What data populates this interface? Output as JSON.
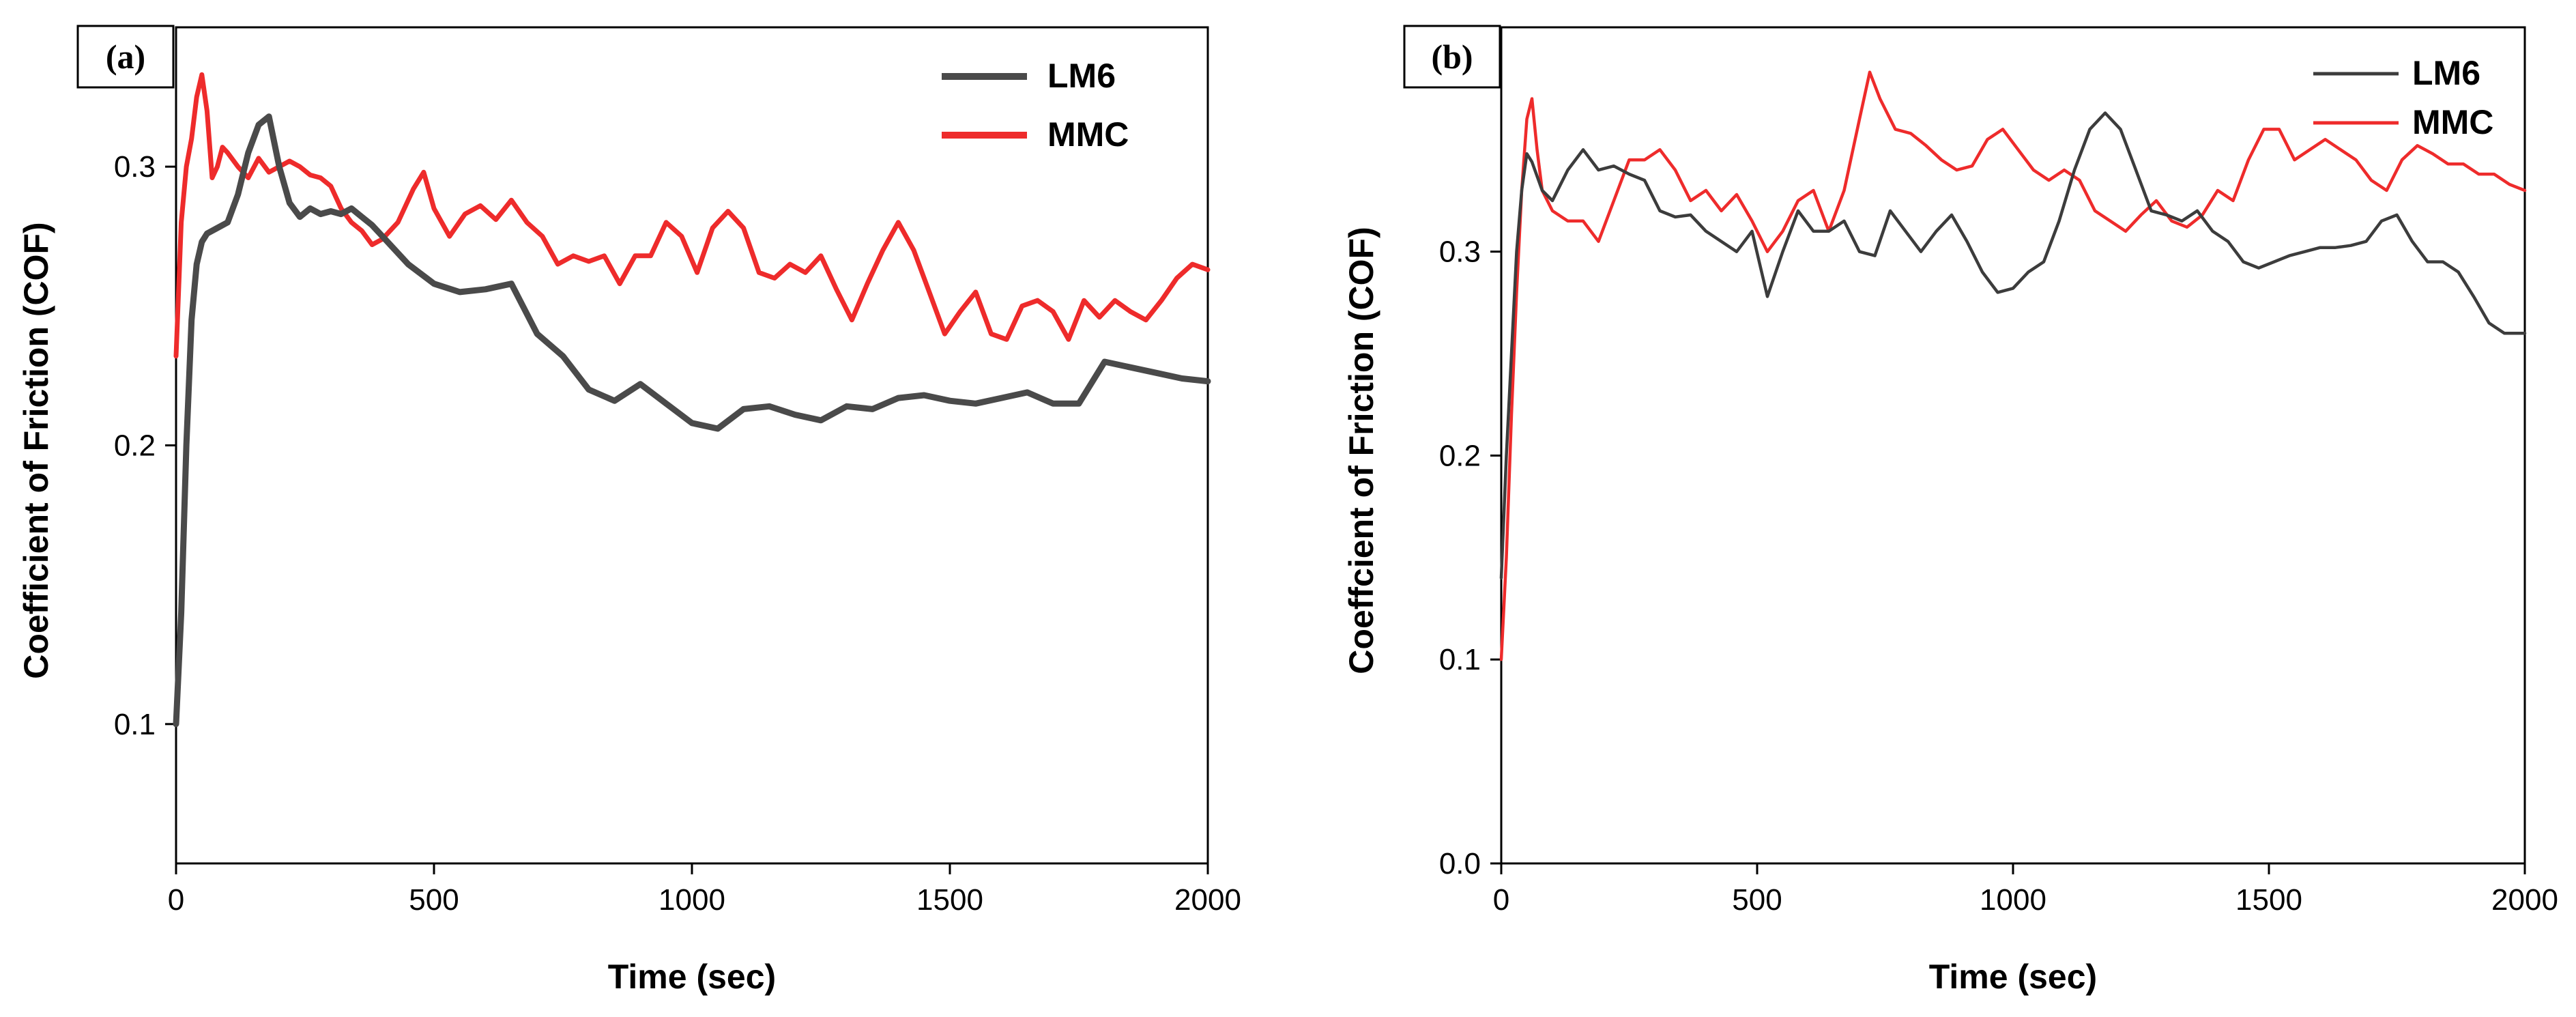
{
  "chart_data": [
    {
      "type": "line",
      "panel_label": "(a)",
      "xlabel": "Time (sec)",
      "ylabel": "Coefficient of Friction (COF)",
      "xlim": [
        0,
        2000
      ],
      "ylim": [
        0.05,
        0.35
      ],
      "xticks": [
        0,
        500,
        1000,
        1500,
        2000
      ],
      "yticks": [
        0.1,
        0.2,
        0.3
      ],
      "legend_position": "top-right",
      "series": [
        {
          "name": "LM6",
          "color": "#4a4a4a",
          "x": [
            0,
            10,
            20,
            30,
            40,
            50,
            60,
            80,
            100,
            120,
            140,
            160,
            180,
            200,
            220,
            240,
            260,
            280,
            300,
            320,
            340,
            360,
            380,
            400,
            450,
            500,
            550,
            600,
            650,
            700,
            750,
            800,
            850,
            900,
            950,
            1000,
            1050,
            1100,
            1150,
            1200,
            1250,
            1300,
            1350,
            1400,
            1450,
            1500,
            1550,
            1600,
            1650,
            1700,
            1750,
            1800,
            1850,
            1900,
            1950,
            2000
          ],
          "values": [
            0.1,
            0.14,
            0.2,
            0.245,
            0.265,
            0.273,
            0.276,
            0.278,
            0.28,
            0.29,
            0.305,
            0.315,
            0.318,
            0.3,
            0.287,
            0.282,
            0.285,
            0.283,
            0.284,
            0.283,
            0.285,
            0.282,
            0.279,
            0.275,
            0.265,
            0.258,
            0.255,
            0.256,
            0.258,
            0.24,
            0.232,
            0.22,
            0.216,
            0.222,
            0.215,
            0.208,
            0.206,
            0.213,
            0.214,
            0.211,
            0.209,
            0.214,
            0.213,
            0.217,
            0.218,
            0.216,
            0.215,
            0.217,
            0.219,
            0.215,
            0.215,
            0.23,
            0.228,
            0.226,
            0.224,
            0.223
          ]
        },
        {
          "name": "MMC",
          "color": "#ee2b2b",
          "x": [
            0,
            10,
            20,
            30,
            40,
            50,
            60,
            70,
            80,
            90,
            100,
            120,
            140,
            160,
            180,
            200,
            220,
            240,
            260,
            280,
            300,
            320,
            340,
            360,
            380,
            400,
            430,
            460,
            480,
            500,
            530,
            560,
            590,
            620,
            650,
            680,
            710,
            740,
            770,
            800,
            830,
            860,
            890,
            920,
            950,
            980,
            1010,
            1040,
            1070,
            1100,
            1130,
            1160,
            1190,
            1220,
            1250,
            1280,
            1310,
            1340,
            1370,
            1400,
            1430,
            1460,
            1490,
            1520,
            1550,
            1580,
            1610,
            1640,
            1670,
            1700,
            1730,
            1760,
            1790,
            1820,
            1850,
            1880,
            1910,
            1940,
            1970,
            2000
          ],
          "values": [
            0.232,
            0.28,
            0.3,
            0.31,
            0.325,
            0.333,
            0.32,
            0.296,
            0.3,
            0.307,
            0.305,
            0.3,
            0.296,
            0.303,
            0.298,
            0.3,
            0.302,
            0.3,
            0.297,
            0.296,
            0.293,
            0.285,
            0.28,
            0.277,
            0.272,
            0.274,
            0.28,
            0.292,
            0.298,
            0.285,
            0.275,
            0.283,
            0.286,
            0.281,
            0.288,
            0.28,
            0.275,
            0.265,
            0.268,
            0.266,
            0.268,
            0.258,
            0.268,
            0.268,
            0.28,
            0.275,
            0.262,
            0.278,
            0.284,
            0.278,
            0.262,
            0.26,
            0.265,
            0.262,
            0.268,
            0.256,
            0.245,
            0.258,
            0.27,
            0.28,
            0.27,
            0.255,
            0.24,
            0.248,
            0.255,
            0.24,
            0.238,
            0.25,
            0.252,
            0.248,
            0.238,
            0.252,
            0.246,
            0.252,
            0.248,
            0.245,
            0.252,
            0.26,
            0.265,
            0.263
          ]
        }
      ]
    },
    {
      "type": "line",
      "panel_label": "(b)",
      "xlabel": "Time (sec)",
      "ylabel": "Coeffcient of Friction (COF)",
      "xlim": [
        0,
        2000
      ],
      "ylim": [
        0.0,
        0.41
      ],
      "xticks": [
        0,
        500,
        1000,
        1500,
        2000
      ],
      "yticks": [
        0.0,
        0.1,
        0.2,
        0.3
      ],
      "legend_position": "top-right",
      "series": [
        {
          "name": "LM6",
          "color": "#3c3c3c",
          "x": [
            0,
            10,
            20,
            30,
            40,
            50,
            60,
            80,
            100,
            130,
            160,
            190,
            220,
            250,
            280,
            310,
            340,
            370,
            400,
            430,
            460,
            490,
            520,
            550,
            580,
            610,
            640,
            670,
            700,
            730,
            760,
            790,
            820,
            850,
            880,
            910,
            940,
            970,
            1000,
            1030,
            1060,
            1090,
            1120,
            1150,
            1180,
            1210,
            1240,
            1270,
            1300,
            1330,
            1360,
            1390,
            1420,
            1450,
            1480,
            1510,
            1540,
            1570,
            1600,
            1630,
            1660,
            1690,
            1720,
            1750,
            1780,
            1810,
            1840,
            1870,
            1900,
            1930,
            1960,
            2000
          ],
          "values": [
            0.14,
            0.2,
            0.25,
            0.3,
            0.33,
            0.348,
            0.344,
            0.33,
            0.325,
            0.34,
            0.35,
            0.34,
            0.342,
            0.338,
            0.335,
            0.32,
            0.317,
            0.318,
            0.31,
            0.305,
            0.3,
            0.31,
            0.278,
            0.3,
            0.32,
            0.31,
            0.31,
            0.315,
            0.3,
            0.298,
            0.32,
            0.31,
            0.3,
            0.31,
            0.318,
            0.305,
            0.29,
            0.28,
            0.282,
            0.29,
            0.295,
            0.315,
            0.34,
            0.36,
            0.368,
            0.36,
            0.34,
            0.32,
            0.318,
            0.315,
            0.32,
            0.31,
            0.305,
            0.295,
            0.292,
            0.295,
            0.298,
            0.3,
            0.302,
            0.302,
            0.303,
            0.305,
            0.315,
            0.318,
            0.305,
            0.295,
            0.295,
            0.29,
            0.278,
            0.265,
            0.26,
            0.26
          ]
        },
        {
          "name": "MMC",
          "color": "#ee2b2b",
          "x": [
            0,
            10,
            20,
            30,
            40,
            50,
            60,
            70,
            80,
            100,
            130,
            160,
            190,
            220,
            250,
            280,
            310,
            340,
            370,
            400,
            430,
            460,
            490,
            520,
            550,
            580,
            610,
            640,
            670,
            700,
            720,
            740,
            770,
            800,
            830,
            860,
            890,
            920,
            950,
            980,
            1010,
            1040,
            1070,
            1100,
            1130,
            1160,
            1190,
            1220,
            1250,
            1280,
            1310,
            1340,
            1370,
            1400,
            1430,
            1460,
            1490,
            1520,
            1550,
            1580,
            1610,
            1640,
            1670,
            1700,
            1730,
            1760,
            1790,
            1820,
            1850,
            1880,
            1910,
            1940,
            1970,
            2000
          ],
          "values": [
            0.1,
            0.15,
            0.22,
            0.28,
            0.33,
            0.365,
            0.375,
            0.35,
            0.33,
            0.32,
            0.315,
            0.315,
            0.305,
            0.325,
            0.345,
            0.345,
            0.35,
            0.34,
            0.325,
            0.33,
            0.32,
            0.328,
            0.315,
            0.3,
            0.31,
            0.325,
            0.33,
            0.31,
            0.33,
            0.365,
            0.388,
            0.375,
            0.36,
            0.358,
            0.352,
            0.345,
            0.34,
            0.342,
            0.355,
            0.36,
            0.35,
            0.34,
            0.335,
            0.34,
            0.335,
            0.32,
            0.315,
            0.31,
            0.318,
            0.325,
            0.315,
            0.312,
            0.318,
            0.33,
            0.325,
            0.345,
            0.36,
            0.36,
            0.345,
            0.35,
            0.355,
            0.35,
            0.345,
            0.335,
            0.33,
            0.345,
            0.352,
            0.348,
            0.343,
            0.343,
            0.338,
            0.338,
            0.333,
            0.33
          ]
        }
      ]
    }
  ]
}
